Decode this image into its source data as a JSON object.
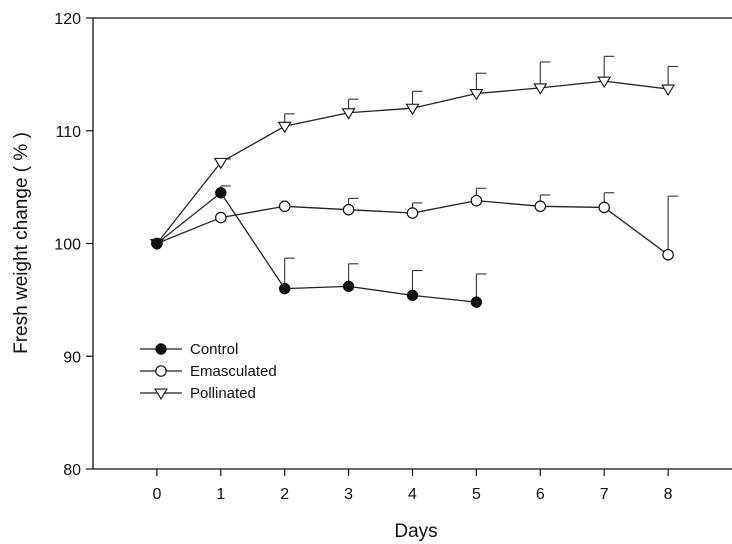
{
  "chart_data": {
    "type": "line",
    "title": "",
    "xlabel": "Days",
    "ylabel": "Fresh weight change ( % )",
    "xlim": [
      -1,
      9
    ],
    "ylim": [
      80,
      120
    ],
    "xticks": [
      0,
      1,
      2,
      3,
      4,
      5,
      6,
      7,
      8
    ],
    "yticks": [
      80,
      90,
      100,
      110,
      120
    ],
    "grid": false,
    "legend_position": "lower-left",
    "series": [
      {
        "name": "Control",
        "marker": "filled-circle",
        "x": [
          0,
          1,
          2,
          3,
          4,
          5
        ],
        "y": [
          100,
          104.5,
          96,
          96.2,
          95.4,
          94.8
        ],
        "err_plus": [
          0,
          0.6,
          2.7,
          2,
          2.2,
          2.5
        ]
      },
      {
        "name": "Emasculated",
        "marker": "open-circle",
        "x": [
          0,
          1,
          2,
          3,
          4,
          5,
          6,
          7,
          8
        ],
        "y": [
          100,
          102.3,
          103.3,
          103,
          102.7,
          103.8,
          103.3,
          103.2,
          99
        ],
        "err_plus": [
          0,
          0,
          0,
          1,
          0.9,
          1.1,
          1,
          1.3,
          5.2
        ]
      },
      {
        "name": "Pollinated",
        "marker": "open-triangle-down",
        "x": [
          0,
          1,
          2,
          3,
          4,
          5,
          6,
          7,
          8
        ],
        "y": [
          100,
          107.2,
          110.4,
          111.6,
          112,
          113.3,
          113.8,
          114.4,
          113.7
        ],
        "err_plus": [
          0,
          0.3,
          1.1,
          1.2,
          1.5,
          1.8,
          2.3,
          2.2,
          2
        ]
      }
    ]
  }
}
